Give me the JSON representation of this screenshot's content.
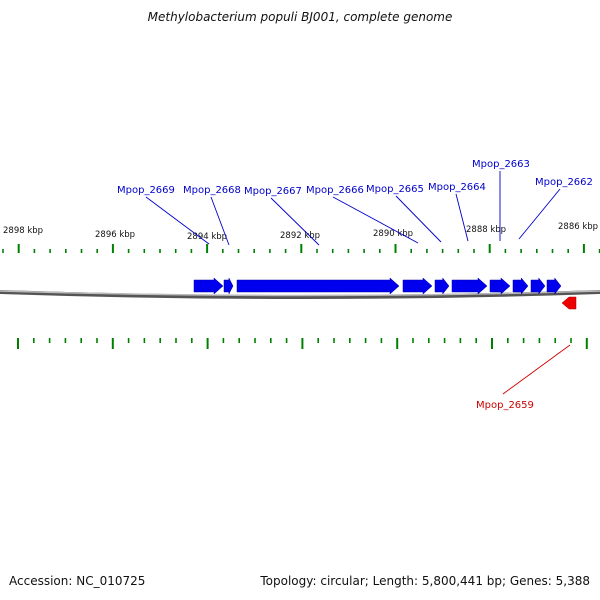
{
  "title": "Methylobacterium populi BJ001, complete genome",
  "accession": "Accession: NC_010725",
  "stats": "Topology: circular; Length: 5,800,441 bp; Genes: 5,388",
  "colors": {
    "forward_gene": "#0000ee",
    "reverse_gene": "#ee0000",
    "tick": "#008000",
    "backbone": "#777777",
    "forward_label": "#0000cc",
    "reverse_label": "#cc0000",
    "text": "#111111"
  },
  "scale_labels": [
    "2898 kbp",
    "2896 kbp",
    "2894 kbp",
    "2892 kbp",
    "2890 kbp",
    "2888 kbp",
    "2886 kbp"
  ],
  "genes": {
    "forward": [
      "Mpop_2669",
      "Mpop_2668",
      "Mpop_2667",
      "Mpop_2666",
      "Mpop_2665",
      "Mpop_2664",
      "Mpop_2663",
      "Mpop_2662"
    ],
    "reverse": [
      "Mpop_2659"
    ]
  }
}
